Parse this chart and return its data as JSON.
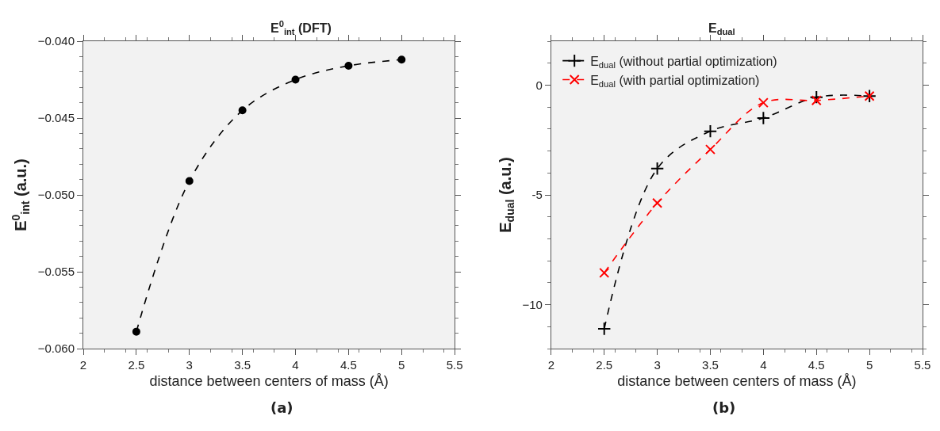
{
  "chart_data": [
    {
      "type": "line",
      "title": "E$^{0}$$_{int}$ (DFT)",
      "xlabel": "distance between centers of mass (Å)",
      "ylabel": "E$^{0}$$_{int}$ (a.u.)",
      "x": [
        2.5,
        3,
        3.5,
        4,
        4.5,
        5
      ],
      "series": [
        {
          "color": "#000000",
          "values": [
            -0.0589,
            -0.0491,
            -0.0445,
            -0.0425,
            -0.0416,
            -0.0412
          ],
          "marker": "circle"
        }
      ],
      "xlim": [
        2,
        5.5
      ],
      "xticks": [
        2,
        2.5,
        3,
        3.5,
        4,
        4.5,
        5,
        5.5
      ],
      "ylim": [
        -0.06,
        -0.04
      ],
      "yticks": [
        {
          "value": -0.06,
          "label": "−0.060"
        },
        {
          "value": -0.055,
          "label": "−0.055"
        },
        {
          "value": -0.05,
          "label": "−0.050"
        },
        {
          "value": -0.045,
          "label": "−0.045"
        },
        {
          "value": -0.04,
          "label": "−0.040"
        }
      ],
      "grid": false,
      "legend": false,
      "line_style": "dashed",
      "annotations": [
        "(a)"
      ]
    },
    {
      "type": "line",
      "title": "E$_{dual}$",
      "xlabel": "distance between centers of mass (Å)",
      "ylabel": "E$_{dual}$ (a.u.)",
      "x": [
        2.5,
        3,
        3.5,
        4,
        4.5,
        5
      ],
      "series": [
        {
          "name": "E$_{dual}$ (without partial optimization)",
          "color": "#000000",
          "values": [
            -11.1,
            -3.8,
            -2.1,
            -1.5,
            -0.55,
            -0.5
          ],
          "marker": "cross"
        },
        {
          "name": "E$_{dual}$ (with partial optimization)",
          "color": "#ff0000",
          "values": [
            -8.55,
            -5.37,
            -2.93,
            -0.8,
            -0.7,
            -0.5
          ],
          "marker": "x"
        }
      ],
      "xlim": [
        2,
        5.5
      ],
      "xticks": [
        2,
        2.5,
        3,
        3.5,
        4,
        4.5,
        5,
        5.5
      ],
      "ylim": [
        -12,
        2
      ],
      "yticks": [
        {
          "value": -10,
          "label": "−10"
        },
        {
          "value": -5,
          "label": "-5"
        },
        {
          "value": 0,
          "label": "0"
        }
      ],
      "grid": false,
      "legend": "top left",
      "line_style": "dashed",
      "annotations": [
        "(b)"
      ]
    }
  ]
}
